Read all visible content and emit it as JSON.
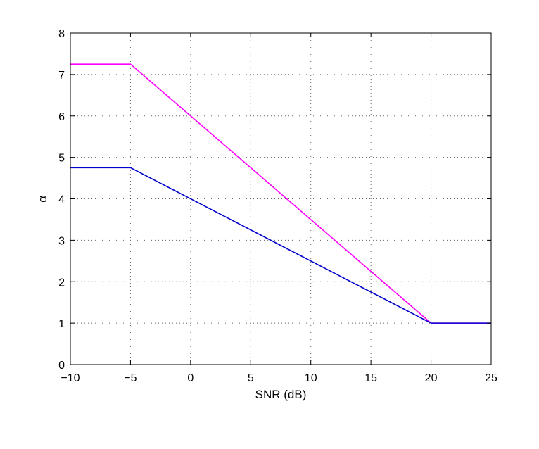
{
  "chart_data": {
    "type": "line",
    "xlabel": "SNR (dB)",
    "ylabel": "α",
    "xlim": [
      -10,
      25
    ],
    "ylim": [
      0,
      8
    ],
    "xticks": [
      "−10",
      "−5",
      "0",
      "5",
      "10",
      "15",
      "20",
      "25"
    ],
    "yticks": [
      "0",
      "1",
      "2",
      "3",
      "4",
      "5",
      "6",
      "7",
      "8"
    ],
    "grid": true,
    "series": [
      {
        "color": "#ff00ff",
        "x": [
          -10,
          -5,
          20,
          25
        ],
        "y": [
          7.25,
          7.25,
          1,
          1
        ]
      },
      {
        "color": "#0000cc",
        "x": [
          -10,
          -5,
          20,
          25
        ],
        "y": [
          4.75,
          4.75,
          1,
          1
        ]
      }
    ]
  }
}
